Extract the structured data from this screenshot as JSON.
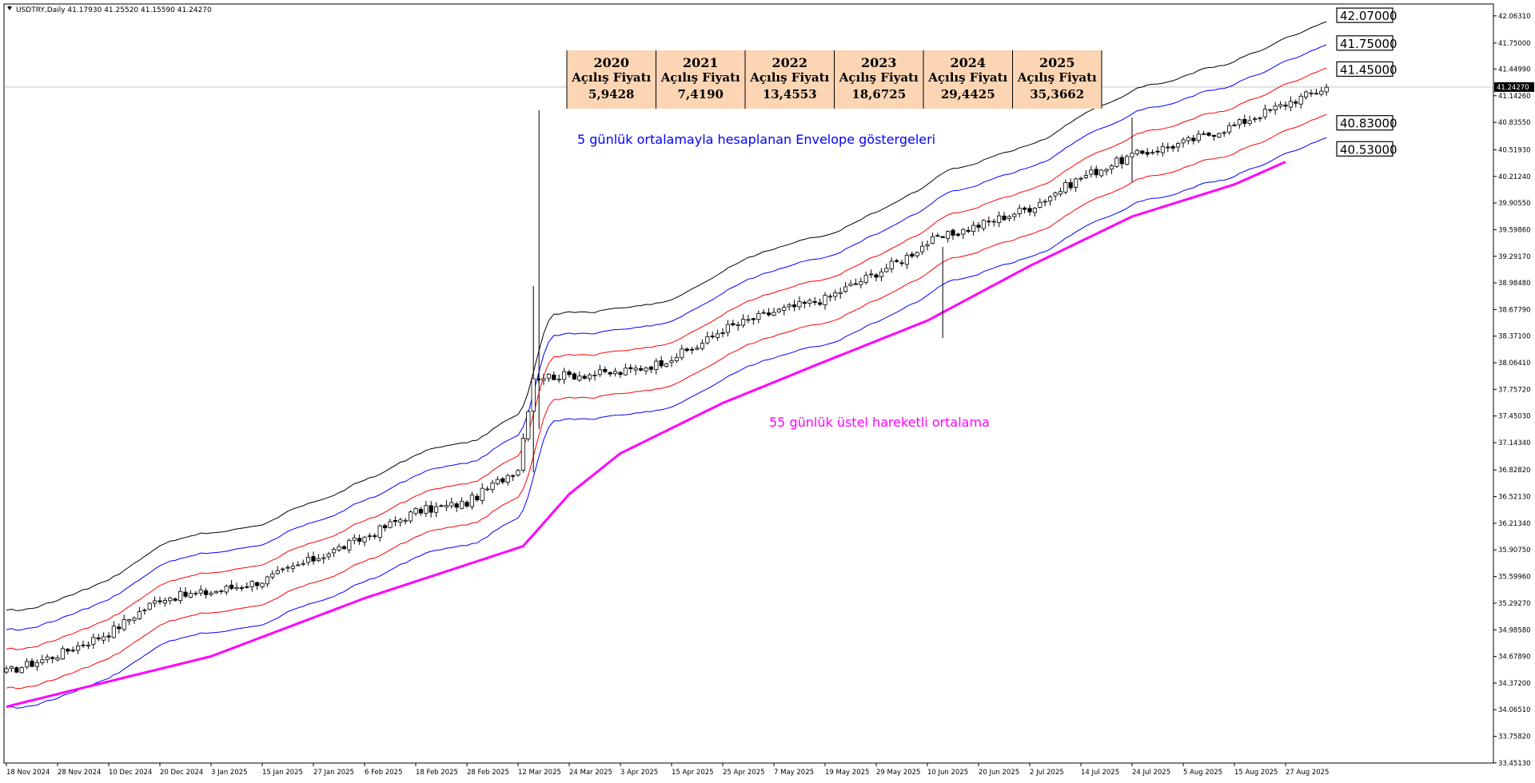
{
  "chart_data": {
    "type": "candlestick",
    "symbol_header": "USDTRY,Daily  41.17930 41.25520 41.15590 41.24270",
    "current_price": "41.24270",
    "ylim": [
      33.45,
      42.2
    ],
    "y_ticks": [
      "42.06310",
      "41.75000",
      "41.44990",
      "41.14260",
      "40.83550",
      "40.51930",
      "40.21240",
      "39.90550",
      "39.59860",
      "39.29170",
      "38.98480",
      "38.67790",
      "38.37100",
      "38.06410",
      "37.75720",
      "37.45030",
      "37.14340",
      "36.82820",
      "36.52130",
      "36.21340",
      "35.90750",
      "35.59960",
      "35.29270",
      "34.98580",
      "34.67890",
      "34.37200",
      "34.06510",
      "33.75820",
      "33.45130"
    ],
    "x_labels": [
      "18 Nov 2024",
      "28 Nov 2024",
      "10 Dec 2024",
      "20 Dec 2024",
      "3 Jan 2025",
      "15 Jan 2025",
      "27 Jan 2025",
      "6 Feb 2025",
      "18 Feb 2025",
      "28 Feb 2025",
      "12 Mar 2025",
      "24 Mar 2025",
      "3 Apr 2025",
      "15 Apr 2025",
      "25 Apr 2025",
      "7 May 2025",
      "19 May 2025",
      "29 May 2025",
      "10 Jun 2025",
      "20 Jun 2025",
      "2 Jul 2025",
      "14 Jul 2025",
      "24 Jul 2025",
      "5 Aug 2025",
      "15 Aug 2025",
      "27 Aug 2025"
    ],
    "x_label_positions": [
      0,
      10,
      20,
      30,
      40,
      50,
      60,
      70,
      80,
      90,
      100,
      110,
      120,
      130,
      140,
      150,
      160,
      170,
      180,
      190,
      200,
      210,
      220,
      230,
      240,
      250
    ],
    "candle_count": 259,
    "close_anchors": [
      [
        0,
        34.5
      ],
      [
        10,
        34.7
      ],
      [
        20,
        34.95
      ],
      [
        30,
        35.35
      ],
      [
        40,
        35.42
      ],
      [
        50,
        35.55
      ],
      [
        60,
        35.8
      ],
      [
        70,
        36.05
      ],
      [
        80,
        36.35
      ],
      [
        90,
        36.45
      ],
      [
        100,
        36.85
      ],
      [
        103,
        37.9
      ],
      [
        110,
        37.92
      ],
      [
        120,
        37.95
      ],
      [
        127,
        38.05
      ],
      [
        135,
        38.25
      ],
      [
        140,
        38.45
      ],
      [
        150,
        38.65
      ],
      [
        160,
        38.8
      ],
      [
        170,
        39.1
      ],
      [
        175,
        39.25
      ],
      [
        180,
        39.45
      ],
      [
        190,
        39.65
      ],
      [
        200,
        39.85
      ],
      [
        210,
        40.2
      ],
      [
        220,
        40.45
      ],
      [
        230,
        40.6
      ],
      [
        240,
        40.8
      ],
      [
        250,
        41.05
      ],
      [
        258,
        41.24
      ]
    ],
    "ema55_anchors": [
      [
        0,
        34.1
      ],
      [
        40,
        34.68
      ],
      [
        70,
        35.35
      ],
      [
        101,
        35.95
      ],
      [
        110,
        36.55
      ],
      [
        120,
        37.02
      ],
      [
        140,
        37.6
      ],
      [
        160,
        38.08
      ],
      [
        180,
        38.55
      ],
      [
        200,
        39.18
      ],
      [
        220,
        39.75
      ],
      [
        240,
        40.12
      ],
      [
        250,
        40.38
      ]
    ],
    "envelopes": [
      {
        "name": "outer-upper",
        "color": "#000000",
        "offset_pct": 1.95
      },
      {
        "name": "mid-upper",
        "color": "#0000ff",
        "offset_pct": 1.3
      },
      {
        "name": "inner-upper",
        "color": "#ff0000",
        "offset_pct": 0.65
      },
      {
        "name": "inner-lower",
        "color": "#ff0000",
        "offset_pct": -0.65
      },
      {
        "name": "mid-lower",
        "color": "#0000ff",
        "offset_pct": -1.3
      }
    ],
    "ema_color": "#ff00ff",
    "spike_candles": [
      {
        "index": 103,
        "high": 38.95,
        "low": 36.8
      },
      {
        "index": 183,
        "high": 39.4,
        "low": 38.35
      },
      {
        "index": 220,
        "high": 40.89,
        "low": 40.15
      }
    ],
    "price_labels": [
      "42.07000",
      "41.75000",
      "41.45000",
      "40.83000",
      "40.53000"
    ],
    "price_label_values": [
      42.07,
      41.75,
      41.45,
      40.83,
      40.53
    ],
    "annotations": [
      {
        "text": "5 günlük ortalamayla hesaplanan Envelope göstergeleri",
        "color": "#0000ff"
      },
      {
        "text": "55 günlük üstel hareketli ortalama",
        "color": "#ff00ff"
      }
    ],
    "yearly_table": [
      {
        "year": "2020",
        "label": "Açılış Fiyatı",
        "value": "5,9428"
      },
      {
        "year": "2021",
        "label": "Açılış Fiyatı",
        "value": "7,4190"
      },
      {
        "year": "2022",
        "label": "Açılış Fiyatı",
        "value": "13,4553"
      },
      {
        "year": "2023",
        "label": "Açılış Fiyatı",
        "value": "18,6725"
      },
      {
        "year": "2024",
        "label": "Açılış Fiyatı",
        "value": "29,4425"
      },
      {
        "year": "2025",
        "label": "Açılış Fiyatı",
        "value": "35,3662"
      }
    ],
    "table_color": "#fcd5b4"
  }
}
